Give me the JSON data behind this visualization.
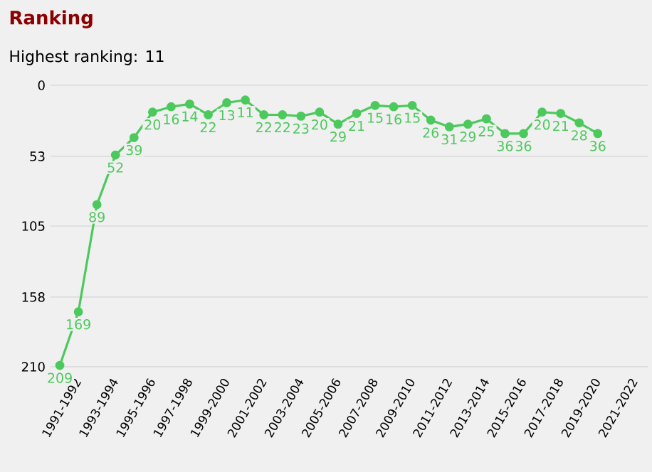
{
  "chart_data": {
    "type": "line",
    "title": "Ranking",
    "subtitle": "Highest ranking: 11",
    "categories": [
      "1991-1992",
      null,
      "1993-1994",
      null,
      "1995-1996",
      null,
      "1997-1998",
      null,
      "1999-2000",
      null,
      "2001-2002",
      null,
      "2003-2004",
      null,
      "2005-2006",
      null,
      "2007-2008",
      null,
      "2009-2010",
      null,
      "2011-2012",
      null,
      "2013-2014",
      null,
      "2015-2016",
      null,
      "2017-2018",
      null,
      "2019-2020",
      null,
      "2021-2022"
    ],
    "series": [
      {
        "color": "#4cc95c",
        "values": [
          209,
          169,
          89,
          52,
          39,
          20,
          16,
          14,
          22,
          13,
          11,
          22,
          22,
          23,
          20,
          29,
          21,
          15,
          16,
          15,
          26,
          31,
          29,
          25,
          36,
          36,
          20,
          21,
          28,
          36,
          null
        ]
      }
    ],
    "ylim": [
      210,
      0
    ],
    "yticks": [
      0,
      53,
      105,
      158,
      210
    ],
    "grid": "y",
    "data_labels": true,
    "marker": "circle",
    "line_style": "solid"
  }
}
